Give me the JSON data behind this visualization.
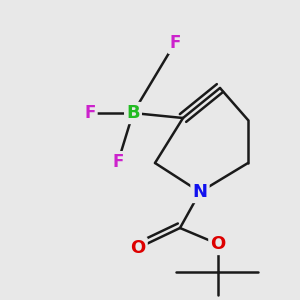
{
  "background_color": "#e8e8e8",
  "bond_color": "#1a1a1a",
  "bond_width": 1.8,
  "figsize": [
    3.0,
    3.0
  ],
  "dpi": 100,
  "atoms": {
    "B": {
      "label": "B",
      "color": "#22bb22",
      "fontsize": 13
    },
    "N": {
      "label": "N",
      "color": "#1111ee",
      "fontsize": 13
    },
    "O1": {
      "label": "O",
      "color": "#dd0000",
      "fontsize": 13
    },
    "O2": {
      "label": "O",
      "color": "#dd0000",
      "fontsize": 13
    },
    "F1": {
      "label": "F",
      "color": "#cc22cc",
      "fontsize": 12
    },
    "F2": {
      "label": "F",
      "color": "#cc22cc",
      "fontsize": 12
    },
    "F3": {
      "label": "F",
      "color": "#cc22cc",
      "fontsize": 12
    }
  }
}
